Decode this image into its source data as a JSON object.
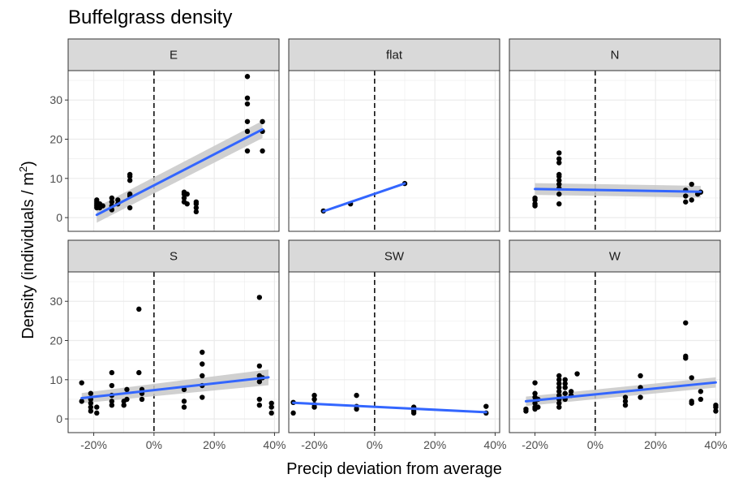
{
  "chart_data": {
    "type": "scatter",
    "title": "Buffelgrass density",
    "xlabel": "Precip deviation from average",
    "ylabel": {
      "main": "Density (individuals / m",
      "superscript": "2",
      "close": ")"
    },
    "facet_layout": {
      "rows": 2,
      "cols": 3
    },
    "xlim": [
      -0.285,
      0.415
    ],
    "ylim": [
      -3.5,
      37.5
    ],
    "x_ticks": [
      -0.2,
      0,
      0.2,
      0.4
    ],
    "x_tick_labels": [
      "-20%",
      "0%",
      "20%",
      "40%"
    ],
    "y_ticks": [
      0,
      10,
      20,
      30
    ],
    "y_tick_labels": [
      "0",
      "10",
      "20",
      "30"
    ],
    "reference_line": {
      "x": 0,
      "style": "dashed"
    },
    "colors": {
      "point": "#000000",
      "fit": "#3366ff",
      "ribbon": "#c8c8c8",
      "strip": "#d9d9d9",
      "grid": "#ebebeb"
    },
    "grid": true,
    "panels": [
      {
        "name": "E",
        "points": [
          [
            -0.19,
            2.5
          ],
          [
            -0.19,
            3
          ],
          [
            -0.19,
            3.5
          ],
          [
            -0.19,
            4
          ],
          [
            -0.19,
            4.5
          ],
          [
            -0.18,
            2.5
          ],
          [
            -0.18,
            3
          ],
          [
            -0.18,
            3.5
          ],
          [
            -0.17,
            3
          ],
          [
            -0.14,
            2
          ],
          [
            -0.14,
            3
          ],
          [
            -0.14,
            4
          ],
          [
            -0.14,
            5
          ],
          [
            -0.12,
            3.5
          ],
          [
            -0.12,
            4.5
          ],
          [
            -0.08,
            2.5
          ],
          [
            -0.08,
            5.5
          ],
          [
            -0.08,
            6
          ],
          [
            -0.08,
            9.5
          ],
          [
            -0.08,
            10.5
          ],
          [
            -0.08,
            11
          ],
          [
            0.1,
            4
          ],
          [
            0.1,
            5
          ],
          [
            0.1,
            6
          ],
          [
            0.1,
            6.5
          ],
          [
            0.11,
            3.5
          ],
          [
            0.11,
            6
          ],
          [
            0.14,
            1.5
          ],
          [
            0.14,
            2.5
          ],
          [
            0.14,
            3.5
          ],
          [
            0.14,
            4
          ],
          [
            0.31,
            17
          ],
          [
            0.31,
            22
          ],
          [
            0.31,
            24.5
          ],
          [
            0.31,
            29
          ],
          [
            0.31,
            30.5
          ],
          [
            0.31,
            36
          ],
          [
            0.36,
            17
          ],
          [
            0.36,
            22
          ],
          [
            0.36,
            24.5
          ]
        ],
        "fit": {
          "x": [
            -0.19,
            0.36
          ],
          "y": [
            0.7,
            22.5
          ]
        },
        "band": {
          "lower": [
            -1.3,
            20.3
          ],
          "upper": [
            2.7,
            24.7
          ]
        }
      },
      {
        "name": "flat",
        "points": [
          [
            -0.17,
            1.7
          ],
          [
            -0.08,
            3.5
          ],
          [
            0.1,
            8.7
          ]
        ],
        "fit": {
          "x": [
            -0.17,
            0.1
          ],
          "y": [
            1.6,
            8.7
          ]
        },
        "band": null
      },
      {
        "name": "N",
        "points": [
          [
            -0.2,
            3
          ],
          [
            -0.2,
            3.5
          ],
          [
            -0.2,
            4.5
          ],
          [
            -0.2,
            5
          ],
          [
            -0.12,
            3.5
          ],
          [
            -0.12,
            6
          ],
          [
            -0.12,
            7.5
          ],
          [
            -0.12,
            8.5
          ],
          [
            -0.12,
            9.5
          ],
          [
            -0.12,
            10.5
          ],
          [
            -0.12,
            11
          ],
          [
            -0.12,
            14
          ],
          [
            -0.12,
            15
          ],
          [
            -0.12,
            16.5
          ],
          [
            0.3,
            4
          ],
          [
            0.3,
            5.5
          ],
          [
            0.3,
            7
          ],
          [
            0.32,
            4.5
          ],
          [
            0.32,
            8.5
          ],
          [
            0.34,
            6
          ],
          [
            0.35,
            6.5
          ]
        ],
        "fit": {
          "x": [
            -0.2,
            0.35
          ],
          "y": [
            7.3,
            6.6
          ]
        },
        "band": {
          "lower": [
            5.8,
            5.1
          ],
          "upper": [
            8.8,
            8.1
          ]
        }
      },
      {
        "name": "S",
        "points": [
          [
            -0.24,
            4.5
          ],
          [
            -0.24,
            9.2
          ],
          [
            -0.21,
            2
          ],
          [
            -0.21,
            3
          ],
          [
            -0.21,
            4
          ],
          [
            -0.21,
            5
          ],
          [
            -0.21,
            6.5
          ],
          [
            -0.19,
            1.5
          ],
          [
            -0.19,
            3
          ],
          [
            -0.14,
            3.5
          ],
          [
            -0.14,
            4.5
          ],
          [
            -0.14,
            6
          ],
          [
            -0.14,
            8.5
          ],
          [
            -0.14,
            11.8
          ],
          [
            -0.1,
            3.5
          ],
          [
            -0.1,
            4.5
          ],
          [
            -0.09,
            5
          ],
          [
            -0.09,
            7.5
          ],
          [
            -0.05,
            11.8
          ],
          [
            -0.05,
            28
          ],
          [
            -0.04,
            5
          ],
          [
            -0.04,
            6.5
          ],
          [
            -0.04,
            7.5
          ],
          [
            0.1,
            3
          ],
          [
            0.1,
            4.5
          ],
          [
            0.1,
            7.5
          ],
          [
            0.16,
            5.5
          ],
          [
            0.16,
            8.5
          ],
          [
            0.16,
            11
          ],
          [
            0.16,
            14
          ],
          [
            0.16,
            17
          ],
          [
            0.35,
            3.5
          ],
          [
            0.35,
            5
          ],
          [
            0.35,
            9.5
          ],
          [
            0.35,
            11
          ],
          [
            0.35,
            13.5
          ],
          [
            0.35,
            31
          ],
          [
            0.36,
            10.5
          ],
          [
            0.39,
            1.5
          ],
          [
            0.39,
            3
          ],
          [
            0.39,
            4
          ]
        ],
        "fit": {
          "x": [
            -0.24,
            0.38
          ],
          "y": [
            5.3,
            10.6
          ]
        },
        "band": {
          "lower": [
            4.0,
            8.6
          ],
          "upper": [
            6.6,
            12.6
          ]
        }
      },
      {
        "name": "SW",
        "points": [
          [
            -0.27,
            1.5
          ],
          [
            -0.27,
            4.2
          ],
          [
            -0.2,
            3
          ],
          [
            -0.2,
            3.7
          ],
          [
            -0.2,
            5
          ],
          [
            -0.2,
            6
          ],
          [
            -0.06,
            2.5
          ],
          [
            -0.06,
            3.2
          ],
          [
            -0.06,
            6
          ],
          [
            0.13,
            1.5
          ],
          [
            0.13,
            2
          ],
          [
            0.13,
            2.5
          ],
          [
            0.13,
            3
          ],
          [
            0.37,
            1.5
          ],
          [
            0.37,
            3.2
          ]
        ],
        "fit": {
          "x": [
            -0.27,
            0.37
          ],
          "y": [
            4.1,
            1.7
          ]
        },
        "band": null
      },
      {
        "name": "W",
        "points": [
          [
            -0.23,
            2
          ],
          [
            -0.23,
            2.5
          ],
          [
            -0.2,
            2.5
          ],
          [
            -0.2,
            3
          ],
          [
            -0.2,
            4
          ],
          [
            -0.2,
            5.5
          ],
          [
            -0.2,
            6.5
          ],
          [
            -0.2,
            9.2
          ],
          [
            -0.19,
            3
          ],
          [
            -0.19,
            5
          ],
          [
            -0.12,
            3
          ],
          [
            -0.12,
            4
          ],
          [
            -0.12,
            5
          ],
          [
            -0.12,
            6
          ],
          [
            -0.12,
            7
          ],
          [
            -0.12,
            8
          ],
          [
            -0.12,
            9
          ],
          [
            -0.12,
            10
          ],
          [
            -0.12,
            11
          ],
          [
            -0.1,
            5
          ],
          [
            -0.1,
            6.5
          ],
          [
            -0.1,
            8
          ],
          [
            -0.1,
            9
          ],
          [
            -0.1,
            10
          ],
          [
            -0.08,
            6
          ],
          [
            -0.08,
            7
          ],
          [
            -0.06,
            11.5
          ],
          [
            0.1,
            3.5
          ],
          [
            0.1,
            4.5
          ],
          [
            0.1,
            5.5
          ],
          [
            0.15,
            5.5
          ],
          [
            0.15,
            8
          ],
          [
            0.15,
            11
          ],
          [
            0.3,
            15.5
          ],
          [
            0.3,
            16
          ],
          [
            0.3,
            24.5
          ],
          [
            0.32,
            4
          ],
          [
            0.32,
            4.5
          ],
          [
            0.32,
            10.5
          ],
          [
            0.35,
            5
          ],
          [
            0.35,
            7
          ],
          [
            0.4,
            2
          ],
          [
            0.4,
            3
          ],
          [
            0.4,
            3.5
          ]
        ],
        "fit": {
          "x": [
            -0.23,
            0.4
          ],
          "y": [
            4.5,
            9.3
          ]
        },
        "band": {
          "lower": [
            3.3,
            8.0
          ],
          "upper": [
            5.7,
            10.6
          ]
        }
      }
    ]
  }
}
